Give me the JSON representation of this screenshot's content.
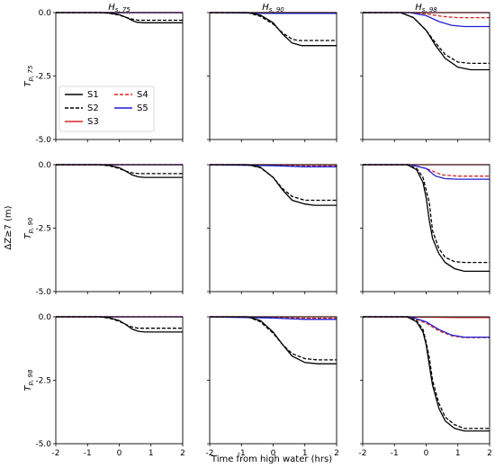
{
  "figure": {
    "xlabel": "Time from high water (hrs)",
    "ylabel": "ΔZ≥7 (m)",
    "col_titles": [
      "H s, 75",
      "H s, 90",
      "H s, 98"
    ],
    "row_titles": [
      "T p, 75",
      "T p, 90",
      "T p, 98"
    ]
  },
  "legend": {
    "placement": "panel (0,0), lower-left",
    "entries": [
      {
        "name": "S1",
        "color": "#000000",
        "dash": "solid"
      },
      {
        "name": "S2",
        "color": "#000000",
        "dash": "dashed"
      },
      {
        "name": "S3",
        "color": "#d62728",
        "dash": "solid"
      },
      {
        "name": "S4",
        "color": "#d62728",
        "dash": "dashed"
      },
      {
        "name": "S5",
        "color": "#1f1fd6",
        "dash": "solid"
      }
    ]
  },
  "chart_data": {
    "type": "line",
    "layout": "3x3 small multiples",
    "xlim": [
      -2,
      2
    ],
    "ylim": [
      -5.0,
      0.0
    ],
    "xticks": [
      "-2",
      "-1",
      "0",
      "1",
      "2"
    ],
    "yticks": [
      "0.0",
      "-2.5",
      "-5.0"
    ],
    "grid": false,
    "series_colors": {
      "S1": "#000000",
      "S2": "#000000",
      "S3": "#d62728",
      "S4": "#d62728",
      "S5": "#1f1fd6"
    },
    "panels": [
      {
        "row": 0,
        "col": 0,
        "series": [
          {
            "name": "S1",
            "x": [
              -2,
              -0.6,
              -0.3,
              0,
              0.2,
              0.4,
              0.55,
              0.8,
              2
            ],
            "y": [
              0,
              0,
              -0.02,
              -0.08,
              -0.18,
              -0.3,
              -0.38,
              -0.4,
              -0.4
            ]
          },
          {
            "name": "S2",
            "x": [
              -2,
              -0.6,
              -0.3,
              0,
              0.2,
              0.4,
              0.6,
              0.8,
              2
            ],
            "y": [
              0,
              0,
              -0.03,
              -0.1,
              -0.18,
              -0.25,
              -0.3,
              -0.3,
              -0.3
            ]
          },
          {
            "name": "S3",
            "x": [
              -2,
              2
            ],
            "y": [
              0,
              0
            ]
          },
          {
            "name": "S4",
            "x": [
              -2,
              2
            ],
            "y": [
              0,
              0
            ]
          },
          {
            "name": "S5",
            "x": [
              -2,
              2
            ],
            "y": [
              0,
              0
            ]
          }
        ]
      },
      {
        "row": 0,
        "col": 1,
        "series": [
          {
            "name": "S1",
            "x": [
              -2,
              -0.8,
              -0.4,
              0,
              0.3,
              0.6,
              0.9,
              1.2,
              2
            ],
            "y": [
              0,
              0,
              -0.1,
              -0.4,
              -0.85,
              -1.2,
              -1.3,
              -1.3,
              -1.3
            ]
          },
          {
            "name": "S2",
            "x": [
              -2,
              -0.8,
              -0.4,
              0,
              0.3,
              0.6,
              0.8,
              1.0,
              2
            ],
            "y": [
              0,
              0,
              -0.15,
              -0.45,
              -0.8,
              -1.05,
              -1.1,
              -1.1,
              -1.1
            ]
          },
          {
            "name": "S3",
            "x": [
              -2,
              2
            ],
            "y": [
              0,
              0
            ]
          },
          {
            "name": "S4",
            "x": [
              -2,
              0,
              2
            ],
            "y": [
              0,
              -0.02,
              -0.02
            ]
          },
          {
            "name": "S5",
            "x": [
              -2,
              0,
              2
            ],
            "y": [
              0,
              -0.03,
              -0.03
            ]
          }
        ]
      },
      {
        "row": 0,
        "col": 2,
        "series": [
          {
            "name": "S1",
            "x": [
              -2,
              -0.8,
              -0.4,
              0,
              0.3,
              0.6,
              1.0,
              1.4,
              2
            ],
            "y": [
              0,
              0,
              -0.2,
              -0.7,
              -1.3,
              -1.8,
              -2.15,
              -2.25,
              -2.25
            ]
          },
          {
            "name": "S2",
            "x": [
              -2,
              -0.8,
              -0.4,
              0,
              0.3,
              0.6,
              1.0,
              1.4,
              2
            ],
            "y": [
              0,
              0,
              -0.2,
              -0.7,
              -1.2,
              -1.65,
              -1.95,
              -2.0,
              -2.0
            ]
          },
          {
            "name": "S3",
            "x": [
              -2,
              2
            ],
            "y": [
              0,
              0
            ]
          },
          {
            "name": "S4",
            "x": [
              -2,
              -0.5,
              0,
              0.5,
              1.0,
              2
            ],
            "y": [
              0,
              0,
              -0.05,
              -0.15,
              -0.2,
              -0.2
            ]
          },
          {
            "name": "S5",
            "x": [
              -2,
              -0.5,
              0,
              0.4,
              0.8,
              1.2,
              2
            ],
            "y": [
              0,
              0,
              -0.12,
              -0.35,
              -0.5,
              -0.55,
              -0.55
            ]
          }
        ]
      },
      {
        "row": 1,
        "col": 0,
        "series": [
          {
            "name": "S1",
            "x": [
              -2,
              -0.6,
              -0.3,
              0,
              0.2,
              0.4,
              0.6,
              0.8,
              2
            ],
            "y": [
              0,
              0,
              -0.03,
              -0.12,
              -0.25,
              -0.4,
              -0.48,
              -0.5,
              -0.5
            ]
          },
          {
            "name": "S2",
            "x": [
              -2,
              -0.6,
              -0.3,
              0,
              0.2,
              0.4,
              0.6,
              0.8,
              2
            ],
            "y": [
              0,
              0,
              -0.05,
              -0.15,
              -0.25,
              -0.32,
              -0.35,
              -0.35,
              -0.35
            ]
          },
          {
            "name": "S3",
            "x": [
              -2,
              2
            ],
            "y": [
              0,
              0
            ]
          },
          {
            "name": "S4",
            "x": [
              -2,
              2
            ],
            "y": [
              0,
              0
            ]
          },
          {
            "name": "S5",
            "x": [
              -2,
              2
            ],
            "y": [
              0,
              0
            ]
          }
        ]
      },
      {
        "row": 1,
        "col": 1,
        "series": [
          {
            "name": "S1",
            "x": [
              -2,
              -0.8,
              -0.4,
              0,
              0.3,
              0.6,
              1.0,
              1.3,
              2
            ],
            "y": [
              0,
              0,
              -0.1,
              -0.5,
              -1.0,
              -1.4,
              -1.55,
              -1.6,
              -1.6
            ]
          },
          {
            "name": "S2",
            "x": [
              -2,
              -0.8,
              -0.4,
              0,
              0.3,
              0.6,
              1.0,
              1.3,
              2
            ],
            "y": [
              0,
              0,
              -0.12,
              -0.5,
              -0.95,
              -1.25,
              -1.4,
              -1.4,
              -1.4
            ]
          },
          {
            "name": "S3",
            "x": [
              -2,
              2
            ],
            "y": [
              0,
              0
            ]
          },
          {
            "name": "S4",
            "x": [
              -2,
              0,
              1,
              2
            ],
            "y": [
              0,
              -0.03,
              -0.05,
              -0.05
            ]
          },
          {
            "name": "S5",
            "x": [
              -2,
              0,
              1,
              2
            ],
            "y": [
              0,
              -0.04,
              -0.08,
              -0.08
            ]
          }
        ]
      },
      {
        "row": 1,
        "col": 2,
        "series": [
          {
            "name": "S1",
            "x": [
              -2,
              -0.6,
              -0.3,
              -0.1,
              0,
              0.1,
              0.2,
              0.4,
              0.6,
              0.9,
              1.2,
              1.5,
              2
            ],
            "y": [
              0,
              0,
              -0.2,
              -0.7,
              -1.3,
              -2.2,
              -2.9,
              -3.5,
              -3.85,
              -4.1,
              -4.2,
              -4.2,
              -4.2
            ]
          },
          {
            "name": "S2",
            "x": [
              -2,
              -0.6,
              -0.3,
              -0.1,
              0,
              0.1,
              0.2,
              0.4,
              0.6,
              0.9,
              1.2,
              1.5,
              2
            ],
            "y": [
              0,
              0,
              -0.15,
              -0.5,
              -1.0,
              -1.5,
              -2.6,
              -3.3,
              -3.65,
              -3.82,
              -3.85,
              -3.85,
              -3.85
            ]
          },
          {
            "name": "S3",
            "x": [
              -2,
              2
            ],
            "y": [
              0,
              0
            ]
          },
          {
            "name": "S4",
            "x": [
              -2,
              -0.5,
              0,
              0.5,
              1.0,
              2
            ],
            "y": [
              0,
              0,
              -0.15,
              -0.4,
              -0.45,
              -0.45
            ]
          },
          {
            "name": "S5",
            "x": [
              -2,
              -0.5,
              0,
              0.3,
              0.6,
              1.0,
              2
            ],
            "y": [
              0,
              0,
              -0.15,
              -0.45,
              -0.55,
              -0.57,
              -0.57
            ]
          }
        ]
      },
      {
        "row": 2,
        "col": 0,
        "series": [
          {
            "name": "S1",
            "x": [
              -2,
              -0.6,
              -0.3,
              0,
              0.2,
              0.4,
              0.6,
              0.8,
              2
            ],
            "y": [
              0,
              0,
              -0.04,
              -0.15,
              -0.3,
              -0.48,
              -0.57,
              -0.6,
              -0.6
            ]
          },
          {
            "name": "S2",
            "x": [
              -2,
              -0.6,
              -0.3,
              0,
              0.2,
              0.4,
              0.6,
              0.8,
              2
            ],
            "y": [
              0,
              0,
              -0.06,
              -0.18,
              -0.3,
              -0.4,
              -0.45,
              -0.45,
              -0.45
            ]
          },
          {
            "name": "S3",
            "x": [
              -2,
              2
            ],
            "y": [
              0,
              0
            ]
          },
          {
            "name": "S4",
            "x": [
              -2,
              2
            ],
            "y": [
              0,
              0
            ]
          },
          {
            "name": "S5",
            "x": [
              -2,
              2
            ],
            "y": [
              0,
              0
            ]
          }
        ]
      },
      {
        "row": 2,
        "col": 1,
        "series": [
          {
            "name": "S1",
            "x": [
              -2,
              -0.8,
              -0.4,
              0,
              0.3,
              0.6,
              1.0,
              1.4,
              2
            ],
            "y": [
              0,
              0,
              -0.15,
              -0.6,
              -1.1,
              -1.55,
              -1.8,
              -1.85,
              -1.85
            ]
          },
          {
            "name": "S2",
            "x": [
              -2,
              -0.8,
              -0.4,
              0,
              0.3,
              0.6,
              1.0,
              1.4,
              2
            ],
            "y": [
              0,
              0,
              -0.2,
              -0.65,
              -1.1,
              -1.45,
              -1.65,
              -1.7,
              -1.7
            ]
          },
          {
            "name": "S3",
            "x": [
              -2,
              2
            ],
            "y": [
              0,
              0
            ]
          },
          {
            "name": "S4",
            "x": [
              -2,
              0,
              1,
              2
            ],
            "y": [
              0,
              -0.03,
              -0.06,
              -0.06
            ]
          },
          {
            "name": "S5",
            "x": [
              -2,
              0,
              1,
              2
            ],
            "y": [
              0,
              -0.05,
              -0.1,
              -0.1
            ]
          }
        ]
      },
      {
        "row": 2,
        "col": 2,
        "series": [
          {
            "name": "S1",
            "x": [
              -2,
              -0.6,
              -0.3,
              -0.1,
              0,
              0.1,
              0.2,
              0.4,
              0.6,
              0.9,
              1.2,
              1.5,
              2
            ],
            "y": [
              0,
              0,
              -0.2,
              -0.6,
              -1.1,
              -1.9,
              -2.7,
              -3.6,
              -4.1,
              -4.4,
              -4.5,
              -4.5,
              -4.5
            ]
          },
          {
            "name": "S2",
            "x": [
              -2,
              -0.6,
              -0.3,
              -0.1,
              0,
              0.1,
              0.2,
              0.4,
              0.6,
              0.9,
              1.2,
              1.5,
              2
            ],
            "y": [
              0,
              0,
              -0.15,
              -0.5,
              -1.0,
              -1.6,
              -2.5,
              -3.4,
              -3.95,
              -4.25,
              -4.4,
              -4.4,
              -4.4
            ]
          },
          {
            "name": "S3",
            "x": [
              -2,
              0,
              1,
              2
            ],
            "y": [
              0,
              -0.01,
              -0.03,
              -0.03
            ]
          },
          {
            "name": "S4",
            "x": [
              -2,
              -0.5,
              0,
              0.4,
              0.8,
              1.2,
              2
            ],
            "y": [
              0,
              0,
              -0.25,
              -0.55,
              -0.75,
              -0.82,
              -0.82
            ]
          },
          {
            "name": "S5",
            "x": [
              -2,
              -0.5,
              0,
              0.4,
              0.8,
              1.2,
              2
            ],
            "y": [
              0,
              0,
              -0.2,
              -0.5,
              -0.72,
              -0.8,
              -0.8
            ]
          }
        ]
      }
    ]
  }
}
